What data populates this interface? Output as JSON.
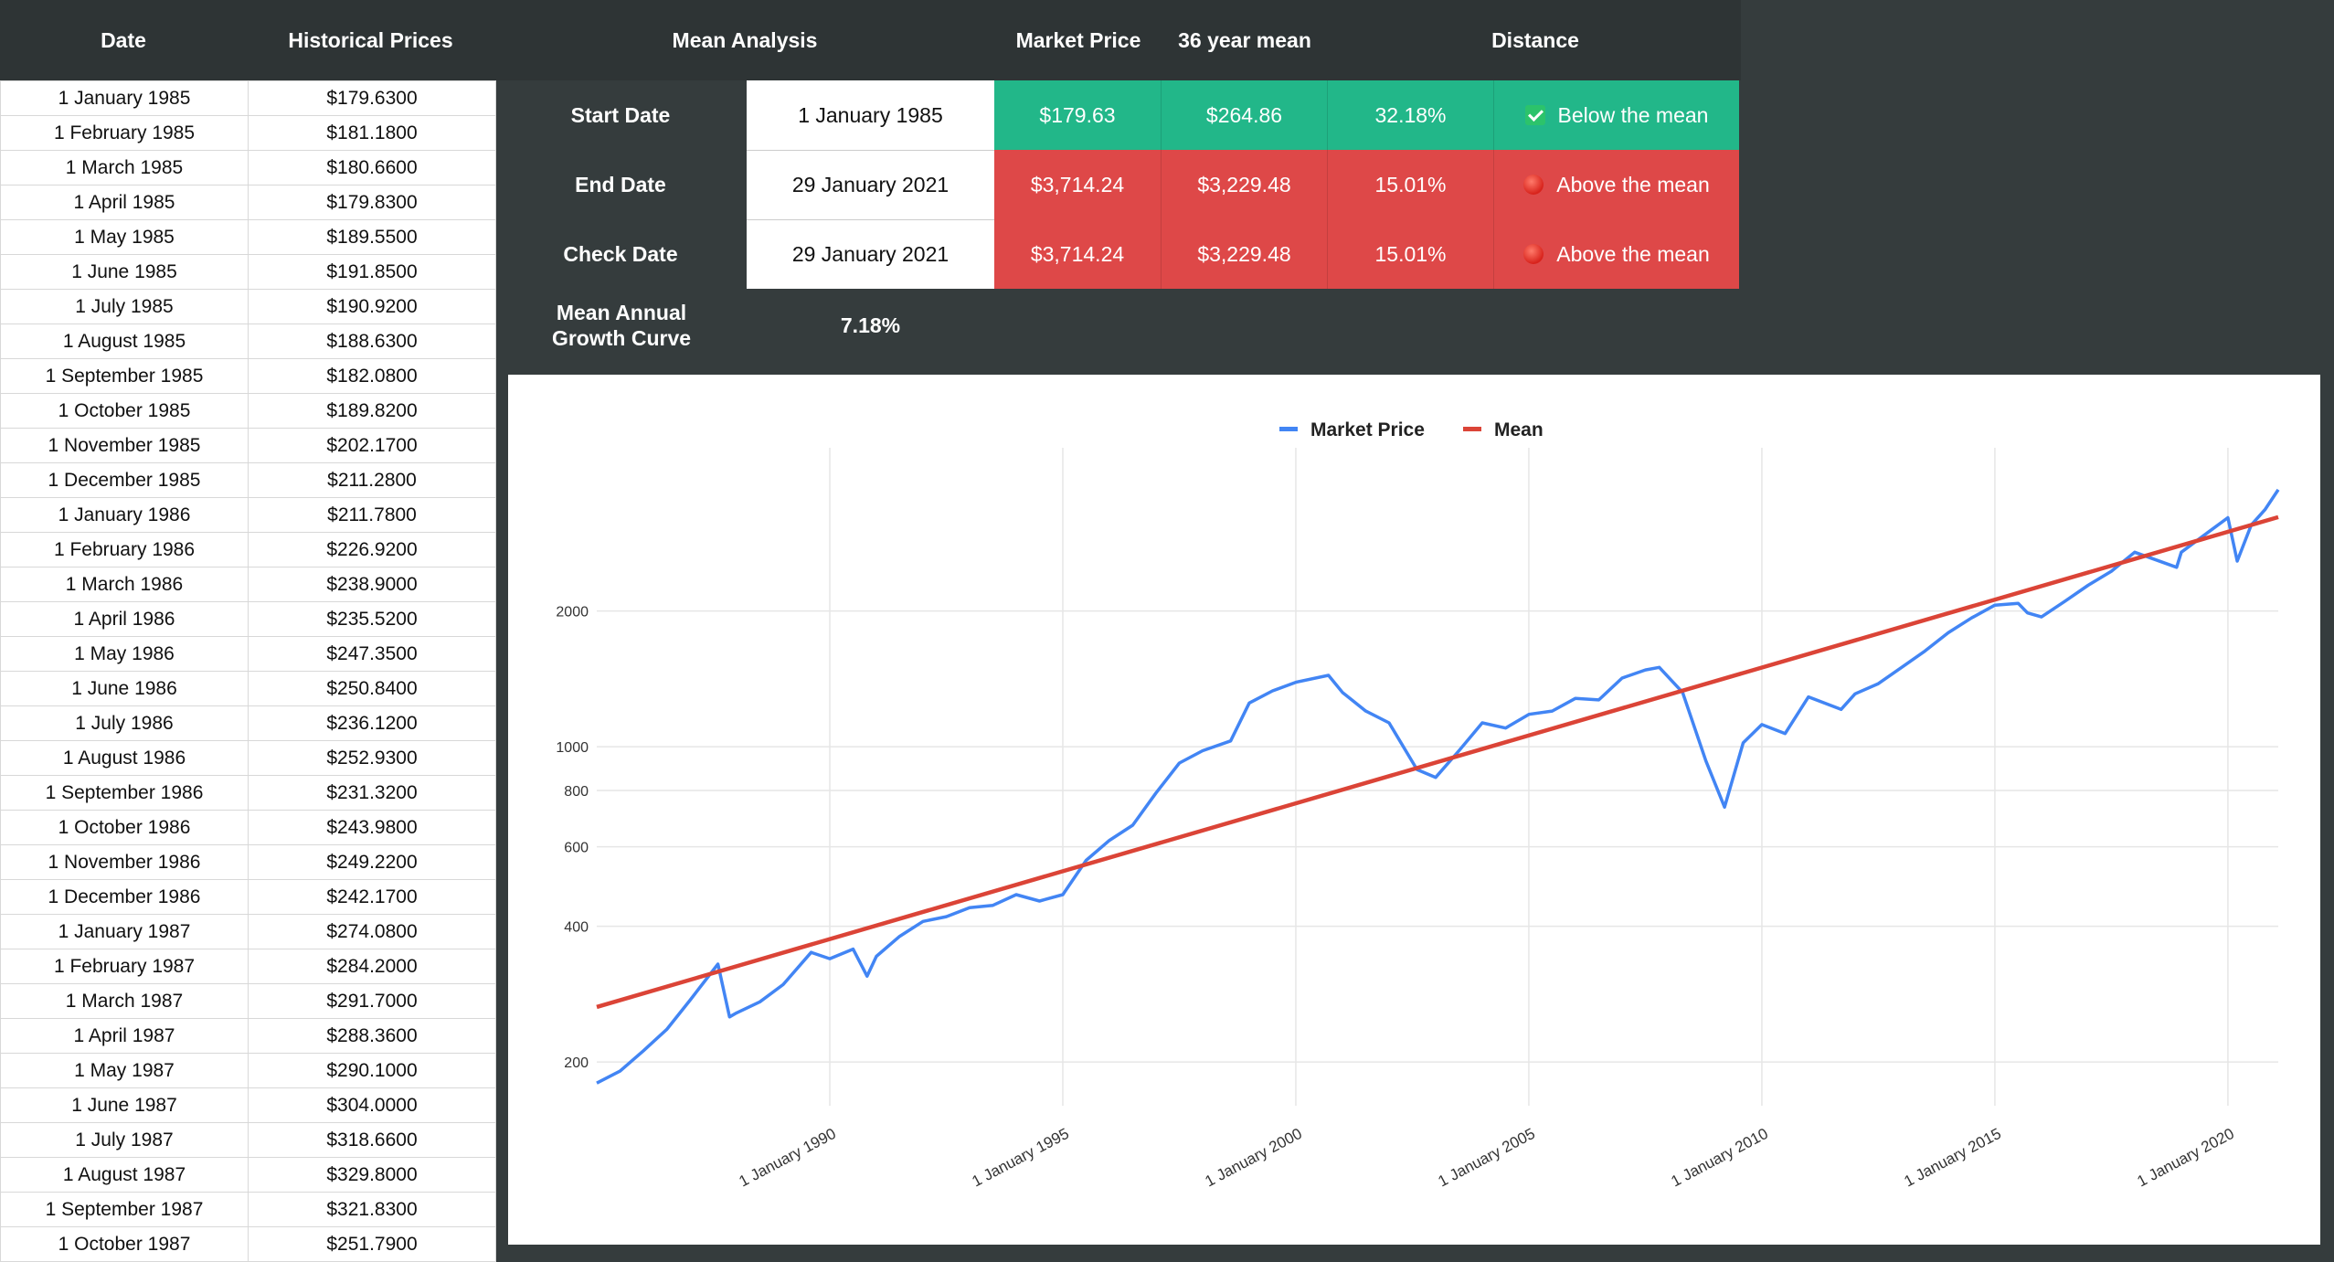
{
  "headers": {
    "date": "Date",
    "historical_prices": "Historical Prices",
    "mean_analysis": "Mean Analysis",
    "market_price": "Market Price",
    "mean_36y": "36 year mean",
    "distance": "Distance"
  },
  "historical": [
    [
      "1 January 1985",
      "$179.6300"
    ],
    [
      "1 February 1985",
      "$181.1800"
    ],
    [
      "1 March 1985",
      "$180.6600"
    ],
    [
      "1 April 1985",
      "$179.8300"
    ],
    [
      "1 May 1985",
      "$189.5500"
    ],
    [
      "1 June 1985",
      "$191.8500"
    ],
    [
      "1 July 1985",
      "$190.9200"
    ],
    [
      "1 August 1985",
      "$188.6300"
    ],
    [
      "1 September 1985",
      "$182.0800"
    ],
    [
      "1 October 1985",
      "$189.8200"
    ],
    [
      "1 November 1985",
      "$202.1700"
    ],
    [
      "1 December 1985",
      "$211.2800"
    ],
    [
      "1 January 1986",
      "$211.7800"
    ],
    [
      "1 February 1986",
      "$226.9200"
    ],
    [
      "1 March 1986",
      "$238.9000"
    ],
    [
      "1 April 1986",
      "$235.5200"
    ],
    [
      "1 May 1986",
      "$247.3500"
    ],
    [
      "1 June 1986",
      "$250.8400"
    ],
    [
      "1 July 1986",
      "$236.1200"
    ],
    [
      "1 August 1986",
      "$252.9300"
    ],
    [
      "1 September 1986",
      "$231.3200"
    ],
    [
      "1 October 1986",
      "$243.9800"
    ],
    [
      "1 November 1986",
      "$249.2200"
    ],
    [
      "1 December 1986",
      "$242.1700"
    ],
    [
      "1 January 1987",
      "$274.0800"
    ],
    [
      "1 February 1987",
      "$284.2000"
    ],
    [
      "1 March 1987",
      "$291.7000"
    ],
    [
      "1 April 1987",
      "$288.3600"
    ],
    [
      "1 May 1987",
      "$290.1000"
    ],
    [
      "1 June 1987",
      "$304.0000"
    ],
    [
      "1 July 1987",
      "$318.6600"
    ],
    [
      "1 August 1987",
      "$329.8000"
    ],
    [
      "1 September 1987",
      "$321.8300"
    ],
    [
      "1 October 1987",
      "$251.7900"
    ]
  ],
  "analysis": {
    "start": {
      "label": "Start Date",
      "date": "1 January 1985",
      "price": "$179.63",
      "mean": "$264.86",
      "pct": "32.18%",
      "status": "Below the mean"
    },
    "end": {
      "label": "End Date",
      "date": "29 January 2021",
      "price": "$3,714.24",
      "mean": "$3,229.48",
      "pct": "15.01%",
      "status": "Above the mean"
    },
    "check": {
      "label": "Check Date",
      "date": "29 January 2021",
      "price": "$3,714.24",
      "mean": "$3,229.48",
      "pct": "15.01%",
      "status": "Above the mean"
    },
    "growth": {
      "label": "Mean Annual Growth Curve",
      "value": "7.18%"
    }
  },
  "colors": {
    "green": "#22b789",
    "red": "#de4848",
    "market": "#4285f4",
    "mean": "#db4437"
  },
  "icons": {
    "below": "check-mark-icon",
    "above": "red-circle-icon"
  },
  "chart_data": {
    "type": "line",
    "legend": [
      "Market Price",
      "Mean"
    ],
    "legend_position": "top",
    "y_scale": "log",
    "y_ticks": [
      200,
      400,
      600,
      800,
      1000,
      2000
    ],
    "y_tick_labels": [
      "200",
      "400",
      "600",
      "800",
      "1000",
      "2000"
    ],
    "x_ticks": [
      1990,
      1995,
      2000,
      2005,
      2010,
      2015,
      2020
    ],
    "x_tick_labels": [
      "1 January 1990",
      "1 January 1995",
      "1 January 2000",
      "1 January 2005",
      "1 January 2010",
      "1 January 2015",
      "1 January 2020"
    ],
    "x_range": [
      1985.0,
      2021.08
    ],
    "grid": true,
    "series": [
      {
        "name": "Market Price",
        "x": [
          1985.0,
          1985.5,
          1986.0,
          1986.5,
          1987.0,
          1987.6,
          1987.85,
          1988.0,
          1988.5,
          1989.0,
          1989.6,
          1990.0,
          1990.5,
          1990.8,
          1991.0,
          1991.5,
          1992.0,
          1992.5,
          1993.0,
          1993.5,
          1994.0,
          1994.5,
          1995.0,
          1995.5,
          1996.0,
          1996.5,
          1997.0,
          1997.5,
          1998.0,
          1998.6,
          1999.0,
          1999.5,
          2000.0,
          2000.7,
          2001.0,
          2001.5,
          2002.0,
          2002.6,
          2003.0,
          2003.5,
          2004.0,
          2004.5,
          2005.0,
          2005.5,
          2006.0,
          2006.5,
          2007.0,
          2007.5,
          2007.8,
          2008.3,
          2008.8,
          2009.2,
          2009.6,
          2010.0,
          2010.5,
          2011.0,
          2011.7,
          2012.0,
          2012.5,
          2013.0,
          2013.5,
          2014.0,
          2014.5,
          2015.0,
          2015.5,
          2015.7,
          2016.0,
          2016.5,
          2017.0,
          2017.5,
          2018.0,
          2018.9,
          2019.0,
          2019.5,
          2020.0,
          2020.2,
          2020.5,
          2020.8,
          2021.08
        ],
        "y": [
          179.63,
          190.92,
          211.78,
          236.12,
          274.08,
          329.8,
          251.79,
          257,
          272,
          297,
          350,
          339,
          356,
          310,
          343,
          380,
          410,
          420,
          440,
          445,
          470,
          455,
          470,
          560,
          620,
          670,
          790,
          920,
          980,
          1030,
          1250,
          1330,
          1390,
          1440,
          1320,
          1200,
          1130,
          890,
          855,
          980,
          1130,
          1100,
          1180,
          1200,
          1280,
          1270,
          1420,
          1480,
          1500,
          1320,
          930,
          735,
          1020,
          1120,
          1070,
          1290,
          1210,
          1310,
          1380,
          1500,
          1630,
          1790,
          1930,
          2060,
          2080,
          1980,
          1940,
          2100,
          2280,
          2450,
          2700,
          2500,
          2700,
          2950,
          3220,
          2580,
          3100,
          3360,
          3714.24
        ]
      },
      {
        "name": "Mean",
        "x": [
          1985.0,
          2021.08
        ],
        "y": [
          264.86,
          3229.48
        ]
      }
    ]
  }
}
